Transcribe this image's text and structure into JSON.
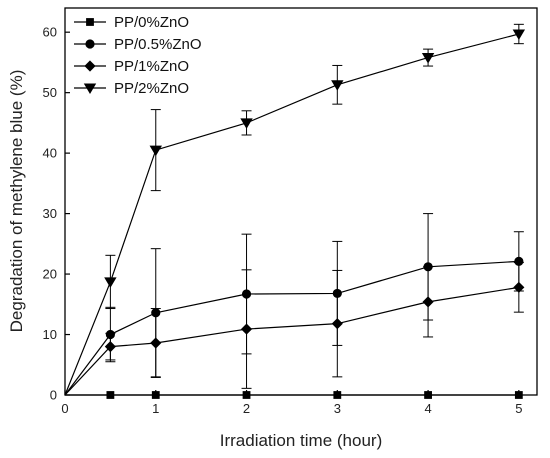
{
  "chart_data": {
    "type": "line",
    "title": "",
    "xlabel": "Irradiation time (hour)",
    "ylabel": "Degradation of methylene blue (%)",
    "xlim": [
      0,
      5.2
    ],
    "ylim": [
      0,
      64
    ],
    "xticks": [
      0,
      1,
      2,
      3,
      4,
      5
    ],
    "yticks": [
      0,
      10,
      20,
      30,
      40,
      50,
      60
    ],
    "grid": false,
    "legend_position": "top-left",
    "series": [
      {
        "name": "PP/0%ZnO",
        "marker": "square",
        "color": "#000000",
        "x": [
          0,
          0.5,
          1,
          2,
          3,
          4,
          5
        ],
        "y": [
          0,
          0,
          0,
          0,
          0,
          0,
          0
        ],
        "err": [
          0,
          0,
          0,
          0,
          0,
          0,
          0
        ]
      },
      {
        "name": "PP/0.5%ZnO",
        "marker": "circle",
        "color": "#000000",
        "x": [
          0,
          0.5,
          1,
          2,
          3,
          4,
          5
        ],
        "y": [
          0,
          10,
          13.6,
          16.7,
          16.8,
          21.2,
          22.1
        ],
        "err": [
          0,
          4.5,
          10.6,
          9.9,
          8.6,
          8.8,
          4.9
        ]
      },
      {
        "name": "PP/1%ZnO",
        "marker": "diamond",
        "color": "#000000",
        "x": [
          0,
          0.5,
          1,
          2,
          3,
          4,
          5
        ],
        "y": [
          0,
          8.0,
          8.6,
          10.9,
          11.8,
          15.4,
          17.8
        ],
        "err": [
          0,
          2.2,
          5.7,
          9.8,
          8.8,
          5.8,
          4.1
        ]
      },
      {
        "name": "PP/2%ZnO",
        "marker": "triangle-down",
        "color": "#000000",
        "x": [
          0,
          0.5,
          1,
          2,
          3,
          4,
          5
        ],
        "y": [
          0,
          18.7,
          40.5,
          45.0,
          51.3,
          55.8,
          59.7
        ],
        "err": [
          0,
          4.4,
          6.7,
          2.0,
          3.2,
          1.4,
          1.6
        ]
      }
    ]
  }
}
